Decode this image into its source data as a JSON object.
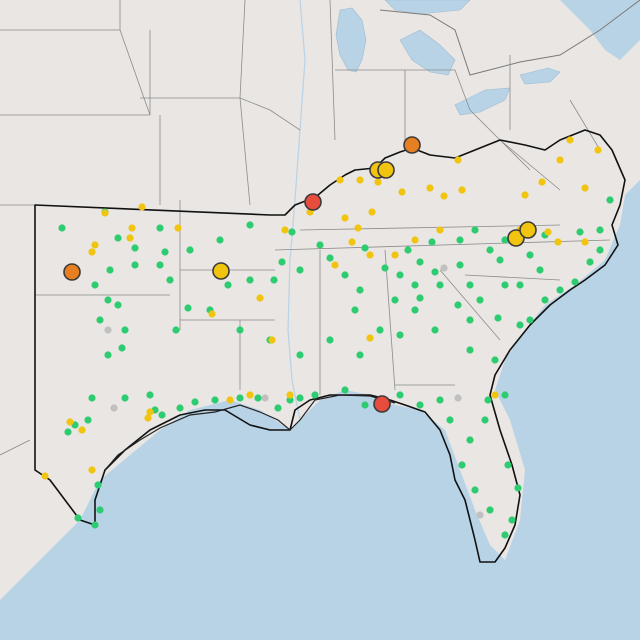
{
  "map": {
    "colors": {
      "land": "#e9e6e3",
      "water": "#b8d3e6",
      "green": "#2ecc71",
      "yellow": "#f1c40f",
      "orange": "#e67e22",
      "red": "#e74c3c",
      "gray": "#c0c0c0"
    },
    "large_markers": [
      {
        "name": "orange-marker-west-oklahoma",
        "color": "orange"
      },
      {
        "name": "yellow-marker-central-oklahoma",
        "color": "yellow"
      },
      {
        "name": "red-marker-missouri",
        "color": "red"
      },
      {
        "name": "orange-marker-ohio",
        "color": "orange"
      },
      {
        "name": "yellow-marker-kentucky-1",
        "color": "yellow"
      },
      {
        "name": "yellow-marker-kentucky-2",
        "color": "yellow"
      },
      {
        "name": "yellow-marker-north-carolina-1",
        "color": "yellow"
      },
      {
        "name": "yellow-marker-north-carolina-2",
        "color": "yellow"
      },
      {
        "name": "red-marker-florida-panhandle",
        "color": "red"
      }
    ]
  }
}
